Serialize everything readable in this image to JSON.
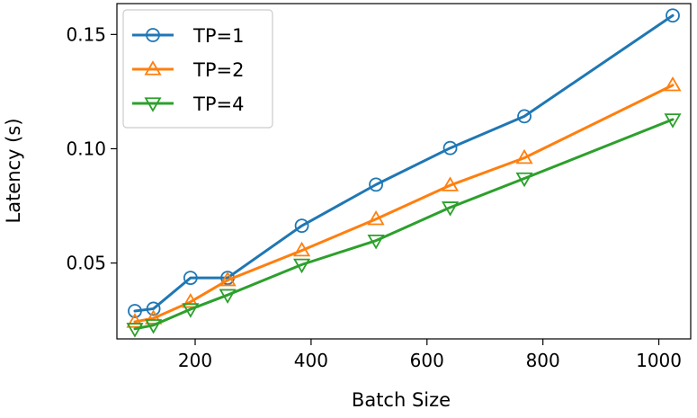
{
  "chart_data": {
    "type": "line",
    "title": "",
    "xlabel": "Batch Size",
    "ylabel": "Latency (s)",
    "xlim": [
      65,
      1055
    ],
    "ylim": [
      0.0168,
      0.1635
    ],
    "xticks": [
      200,
      400,
      600,
      800,
      1000
    ],
    "xtick_labels": [
      "200",
      "400",
      "600",
      "800",
      "1000"
    ],
    "yticks": [
      0.05,
      0.1,
      0.15
    ],
    "ytick_labels": [
      "0.05",
      "0.10",
      "0.15"
    ],
    "grid": false,
    "legend_position": "top-left",
    "x": [
      96,
      128,
      192,
      256,
      384,
      512,
      640,
      768,
      1024
    ],
    "series": [
      {
        "name": "TP=1",
        "color": "#1f77b4",
        "marker": "circle",
        "values": [
          0.029,
          0.03,
          0.0435,
          0.0435,
          0.0663,
          0.0843,
          0.1003,
          0.1142,
          0.1583
        ]
      },
      {
        "name": "TP=2",
        "color": "#ff7f0e",
        "marker": "triangle-up",
        "values": [
          0.0243,
          0.0258,
          0.033,
          0.0425,
          0.0555,
          0.0692,
          0.084,
          0.096,
          0.1278
        ]
      },
      {
        "name": "TP=4",
        "color": "#2ca02c",
        "marker": "triangle-down",
        "values": [
          0.0212,
          0.0228,
          0.0298,
          0.036,
          0.0493,
          0.0598,
          0.0743,
          0.087,
          0.1128
        ]
      }
    ]
  }
}
